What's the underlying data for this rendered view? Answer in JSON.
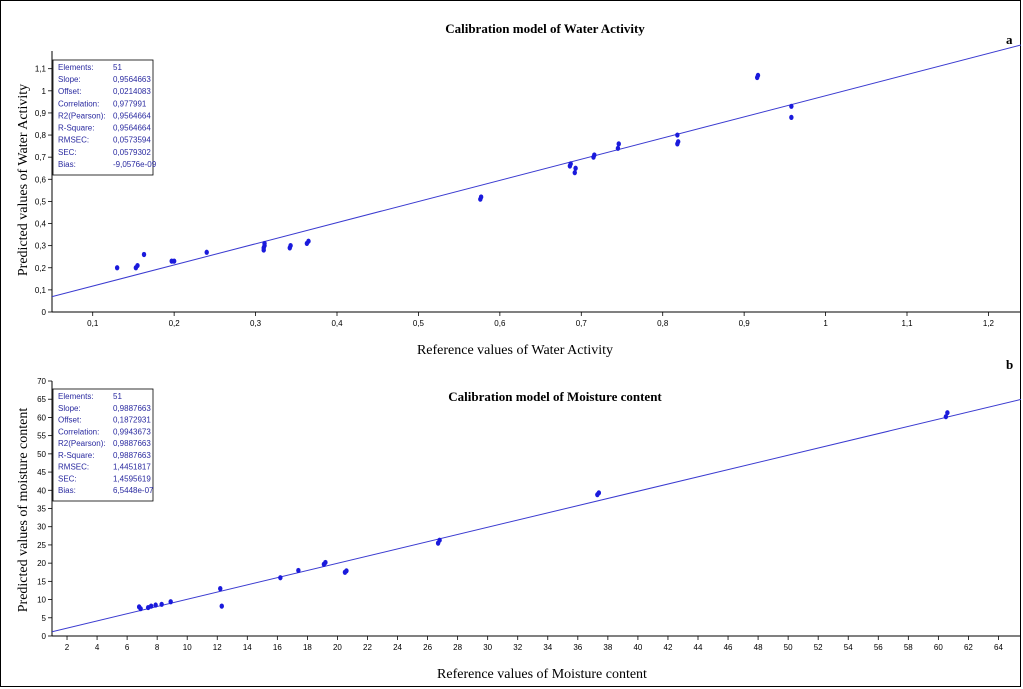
{
  "chart_data": [
    {
      "type": "scatter",
      "panel_label": "a",
      "title": "Calibration model of Water Activity",
      "xlabel": "Reference values of Water Activity",
      "ylabel": "Predicted values of  Water Activity",
      "xlim": [
        0.05,
        1.24
      ],
      "ylim": [
        0,
        1.18
      ],
      "xticks": [
        0.1,
        0.2,
        0.3,
        0.4,
        0.5,
        0.6,
        0.7,
        0.8,
        0.9,
        1.0,
        1.1,
        1.2
      ],
      "xtick_labels": [
        "0,1",
        "0,2",
        "0,3",
        "0,4",
        "0,5",
        "0,6",
        "0,7",
        "0,8",
        "0,9",
        "1",
        "1,1",
        "1,2"
      ],
      "yticks": [
        0,
        0.1,
        0.2,
        0.3,
        0.4,
        0.5,
        0.6,
        0.7,
        0.8,
        0.9,
        1.0,
        1.1
      ],
      "ytick_labels": [
        "0",
        "0,1",
        "0,2",
        "0,3",
        "0,4",
        "0,5",
        "0,6",
        "0,7",
        "0,8",
        "0,9",
        "1",
        "1,1"
      ],
      "fit": {
        "slope": 0.9564663,
        "offset": 0.0214083
      },
      "points": [
        [
          0.13,
          0.2
        ],
        [
          0.153,
          0.2
        ],
        [
          0.155,
          0.21
        ],
        [
          0.163,
          0.26
        ],
        [
          0.197,
          0.23
        ],
        [
          0.2,
          0.23
        ],
        [
          0.24,
          0.27
        ],
        [
          0.31,
          0.28
        ],
        [
          0.31,
          0.29
        ],
        [
          0.311,
          0.3
        ],
        [
          0.311,
          0.31
        ],
        [
          0.342,
          0.29
        ],
        [
          0.343,
          0.3
        ],
        [
          0.363,
          0.31
        ],
        [
          0.365,
          0.32
        ],
        [
          0.576,
          0.51
        ],
        [
          0.577,
          0.52
        ],
        [
          0.686,
          0.66
        ],
        [
          0.687,
          0.67
        ],
        [
          0.692,
          0.63
        ],
        [
          0.693,
          0.65
        ],
        [
          0.715,
          0.7
        ],
        [
          0.716,
          0.71
        ],
        [
          0.745,
          0.74
        ],
        [
          0.746,
          0.76
        ],
        [
          0.818,
          0.76
        ],
        [
          0.819,
          0.77
        ],
        [
          0.818,
          0.8
        ],
        [
          0.916,
          1.06
        ],
        [
          0.917,
          1.07
        ],
        [
          0.958,
          0.88
        ],
        [
          0.958,
          0.93
        ]
      ],
      "stats": [
        {
          "label": "Elements:",
          "value": "51"
        },
        {
          "label": "Slope:",
          "value": "0,9564663"
        },
        {
          "label": "Offset:",
          "value": "0,0214083"
        },
        {
          "label": "Correlation:",
          "value": "0,977991"
        },
        {
          "label": "R2(Pearson):",
          "value": "0,9564664"
        },
        {
          "label": "R-Square:",
          "value": "0,9564664"
        },
        {
          "label": "RMSEC:",
          "value": "0,0573594"
        },
        {
          "label": "SEC:",
          "value": "0,0579302"
        },
        {
          "label": "Bias:",
          "value": "-9,0576e-09"
        }
      ],
      "colors": {
        "points": "#1a1adc",
        "line": "#3a3ad0",
        "text": "#2a2aa0"
      }
    },
    {
      "type": "scatter",
      "panel_label": "b",
      "title": "Calibration model of Moisture content",
      "xlabel": "Reference values of Moisture content",
      "ylabel": "Predicted values of  moisture content",
      "xlim": [
        1,
        65.5
      ],
      "ylim": [
        0,
        70
      ],
      "xticks": [
        2,
        4,
        6,
        8,
        10,
        12,
        14,
        16,
        18,
        20,
        22,
        24,
        26,
        28,
        30,
        32,
        34,
        36,
        38,
        40,
        42,
        44,
        46,
        48,
        50,
        52,
        54,
        56,
        58,
        60,
        62,
        64
      ],
      "xtick_labels": [
        "2",
        "4",
        "6",
        "8",
        "10",
        "12",
        "14",
        "16",
        "18",
        "20",
        "22",
        "24",
        "26",
        "28",
        "30",
        "32",
        "34",
        "36",
        "38",
        "40",
        "42",
        "44",
        "46",
        "48",
        "50",
        "52",
        "54",
        "56",
        "58",
        "60",
        "62",
        "64"
      ],
      "yticks": [
        0,
        5,
        10,
        15,
        20,
        25,
        30,
        35,
        40,
        45,
        50,
        55,
        60,
        65,
        70
      ],
      "ytick_labels": [
        "0",
        "5",
        "10",
        "15",
        "20",
        "25",
        "30",
        "35",
        "40",
        "45",
        "50",
        "55",
        "60",
        "65",
        "70"
      ],
      "fit": {
        "slope": 0.9887663,
        "offset": 0.1872931
      },
      "points": [
        [
          6.8,
          8.0
        ],
        [
          6.9,
          7.5
        ],
        [
          7.4,
          7.8
        ],
        [
          7.6,
          8.2
        ],
        [
          7.9,
          8.5
        ],
        [
          8.3,
          8.7
        ],
        [
          8.9,
          9.4
        ],
        [
          12.2,
          13.0
        ],
        [
          12.3,
          8.2
        ],
        [
          16.2,
          16.0
        ],
        [
          17.4,
          18.0
        ],
        [
          19.1,
          19.7
        ],
        [
          19.2,
          20.2
        ],
        [
          20.5,
          17.5
        ],
        [
          20.6,
          17.9
        ],
        [
          26.7,
          25.5
        ],
        [
          26.8,
          26.3
        ],
        [
          37.3,
          38.8
        ],
        [
          37.4,
          39.3
        ],
        [
          60.5,
          60.2
        ],
        [
          60.6,
          61.3
        ]
      ],
      "stats": [
        {
          "label": "Elements:",
          "value": "51"
        },
        {
          "label": "Slope:",
          "value": "0,9887663"
        },
        {
          "label": "Offset:",
          "value": "0,1872931"
        },
        {
          "label": "Correlation:",
          "value": "0,9943673"
        },
        {
          "label": "R2(Pearson):",
          "value": "0,9887663"
        },
        {
          "label": "R-Square:",
          "value": "0,9887663"
        },
        {
          "label": "RMSEC:",
          "value": "1,4451817"
        },
        {
          "label": "SEC:",
          "value": "1,4595619"
        },
        {
          "label": "Bias:",
          "value": "6,5448e-07"
        }
      ],
      "colors": {
        "points": "#1a1adc",
        "line": "#3a3ad0",
        "text": "#2a2aa0"
      }
    }
  ]
}
